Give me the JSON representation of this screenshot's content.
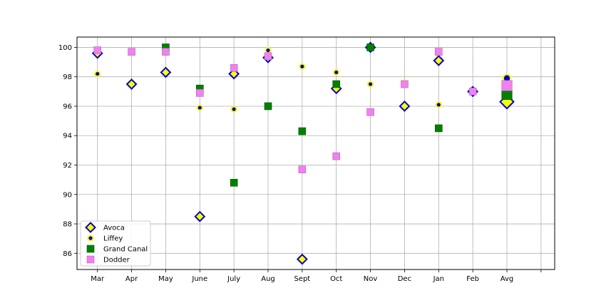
{
  "chart_data": {
    "type": "scatter",
    "categories": [
      "Mar",
      "Apr",
      "May",
      "June",
      "July",
      "Aug",
      "Sept",
      "Oct",
      "Nov",
      "Dec",
      "Jan",
      "Feb",
      "Avg"
    ],
    "ylim": [
      84.9,
      100.7
    ],
    "y_ticks": [
      86,
      88,
      90,
      92,
      94,
      96,
      98,
      100
    ],
    "grid": true,
    "legend_position": "lower-left",
    "series": [
      {
        "name": "Avoca",
        "marker": "diamond",
        "fill": "#ffff00",
        "edge": "#0000cc",
        "values": [
          99.6,
          97.5,
          98.3,
          88.5,
          98.2,
          99.3,
          85.6,
          97.2,
          100.0,
          96.0,
          99.1,
          97.0,
          96.3
        ]
      },
      {
        "name": "Liffey",
        "marker": "circle",
        "fill": "#0000cc",
        "edge": "#ffff00",
        "values": [
          98.2,
          null,
          null,
          95.9,
          95.8,
          99.8,
          98.7,
          98.3,
          97.5,
          97.6,
          96.1,
          null,
          97.9
        ]
      },
      {
        "name": "Grand Canal",
        "marker": "square",
        "fill": "#008000",
        "edge": "#005500",
        "values": [
          null,
          null,
          100.0,
          97.2,
          90.8,
          96.0,
          94.3,
          97.5,
          100.0,
          null,
          94.5,
          null,
          96.8
        ]
      },
      {
        "name": "Dodder",
        "marker": "square",
        "fill": "#ee82ee",
        "edge": "#c060c0",
        "values": [
          99.8,
          99.7,
          99.7,
          96.9,
          98.6,
          99.4,
          91.7,
          92.6,
          95.6,
          97.5,
          99.7,
          97.0,
          97.4
        ]
      }
    ]
  }
}
